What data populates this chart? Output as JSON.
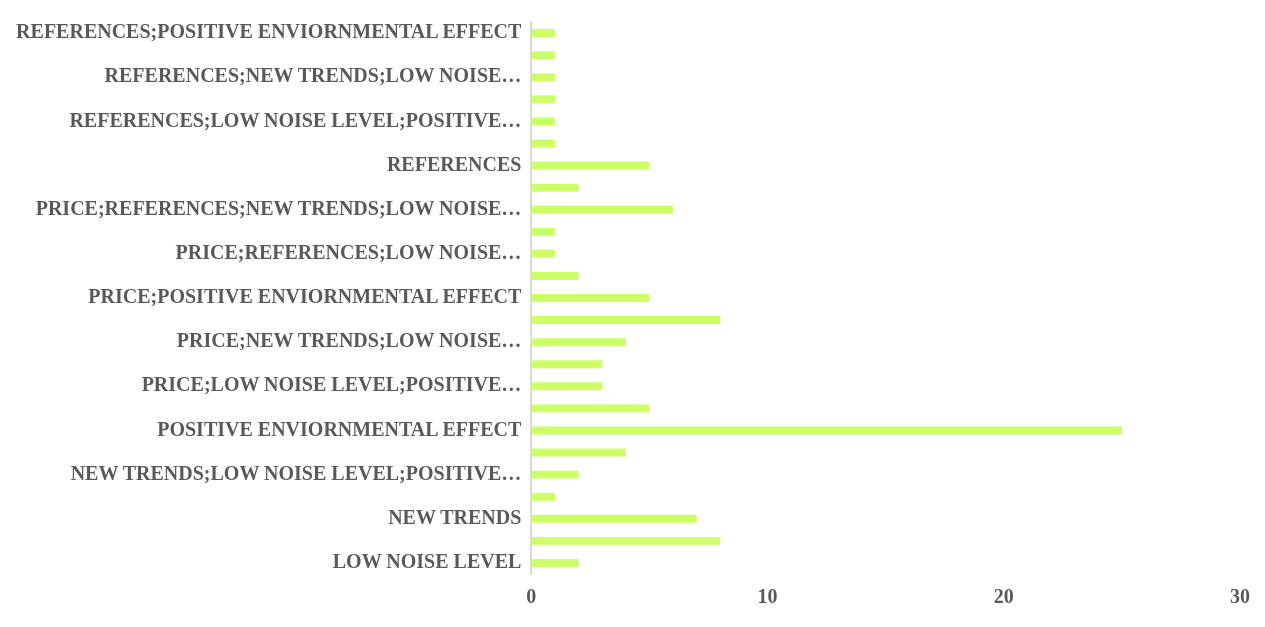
{
  "chart_data": {
    "type": "bar",
    "orientation": "horizontal",
    "categories": [
      "REFERENCES;POSITIVE ENVIORNMENTAL EFFECT",
      null,
      "REFERENCES;NEW TRENDS;LOW NOISE…",
      null,
      "REFERENCES;LOW NOISE LEVEL;POSITIVE…",
      null,
      "REFERENCES",
      null,
      "PRICE;REFERENCES;NEW TRENDS;LOW NOISE…",
      null,
      "PRICE;REFERENCES;LOW NOISE…",
      null,
      "PRICE;POSITIVE ENVIORNMENTAL EFFECT",
      null,
      "PRICE;NEW TRENDS;LOW NOISE…",
      null,
      "PRICE;LOW NOISE LEVEL;POSITIVE…",
      null,
      "POSITIVE ENVIORNMENTAL EFFECT",
      null,
      "NEW TRENDS;LOW NOISE LEVEL;POSITIVE…",
      null,
      "NEW TRENDS",
      null,
      "LOW NOISE LEVEL"
    ],
    "values": [
      1,
      1,
      1,
      1,
      1,
      1,
      5,
      2,
      6,
      1,
      1,
      2,
      5,
      8,
      4,
      3,
      3,
      5,
      25,
      4,
      2,
      1,
      7,
      8,
      2
    ],
    "color": "#ccff66",
    "xlim": [
      0,
      30
    ],
    "xticks": [
      0,
      10,
      20,
      30
    ],
    "grid": false,
    "legend": false
  }
}
